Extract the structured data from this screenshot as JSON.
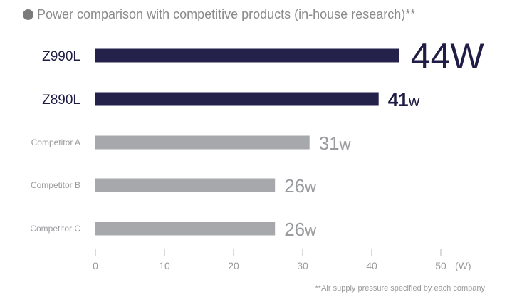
{
  "colors": {
    "primary_bar": "#24214a",
    "secondary_bar": "#a7a8ab",
    "primary_text": "#1f1c45",
    "secondary_text": "#9a9b9e",
    "axis": "#b5b5b5",
    "bullet": "#7b7b7b"
  },
  "bullet_icon": "circle-bullet",
  "chart_data": {
    "type": "bar",
    "orientation": "horizontal",
    "title": "Power comparison with competitive products (in-house research)**",
    "footnote": "**Air supply pressure specified by each company",
    "categories": [
      "Z990L",
      "Z890L",
      "Competitor A",
      "Competitor B",
      "Competitor C"
    ],
    "values": [
      44,
      41,
      31,
      26,
      26
    ],
    "value_number_labels": [
      "44",
      "41",
      "31",
      "26",
      "26"
    ],
    "value_unit_labels": [
      "W",
      "w",
      "w",
      "w",
      "w"
    ],
    "highlight": [
      true,
      true,
      false,
      false,
      false
    ],
    "xlim": [
      0,
      50
    ],
    "xticks": [
      0,
      10,
      20,
      30,
      40,
      50
    ],
    "xtick_labels": [
      "0",
      "10",
      "20",
      "30",
      "40",
      "50"
    ],
    "xunit": "(W)",
    "grid": false,
    "legend": "none"
  }
}
